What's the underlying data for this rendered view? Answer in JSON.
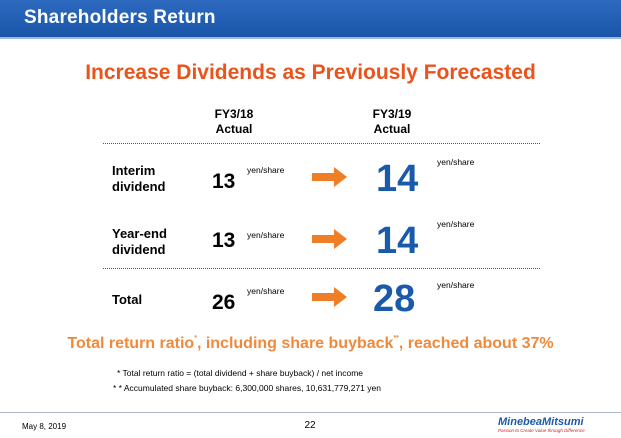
{
  "header": {
    "title": "Shareholders Return"
  },
  "subtitle": "Increase Dividends as Previously Forecasted",
  "columns": [
    {
      "period": "FY3/18",
      "label": "Actual"
    },
    {
      "period": "FY3/19",
      "label": "Actual"
    }
  ],
  "unit": "yen/share",
  "rows": [
    {
      "label_line1": "Interim",
      "label_line2": "dividend",
      "fy18": "13",
      "fy19": "14"
    },
    {
      "label_line1": "Year-end",
      "label_line2": "dividend",
      "fy18": "13",
      "fy19": "14"
    },
    {
      "label_line1": "Total",
      "fy18": "26",
      "fy19": "28"
    }
  ],
  "summary": {
    "part1": "Total return ratio",
    "mark1": "*",
    "part2": ", including share buyback",
    "mark2": "**",
    "part3": ", reached about 37%"
  },
  "notes": [
    "* Total return ratio = (total dividend + share buyback) / net income",
    "* * Accumulated share buyback: 6,300,000 shares, 10,631,779,271 yen"
  ],
  "footer": {
    "date": "May 8, 2019",
    "page": "22",
    "logo_name": "MinebeaMitsumi",
    "logo_tagline": "Passion to Create Value through Difference"
  },
  "colors": {
    "header": "#1a55a8",
    "accent_orange": "#e8541c",
    "arrow": "#f07e26",
    "big_value": "#1a5aab"
  }
}
